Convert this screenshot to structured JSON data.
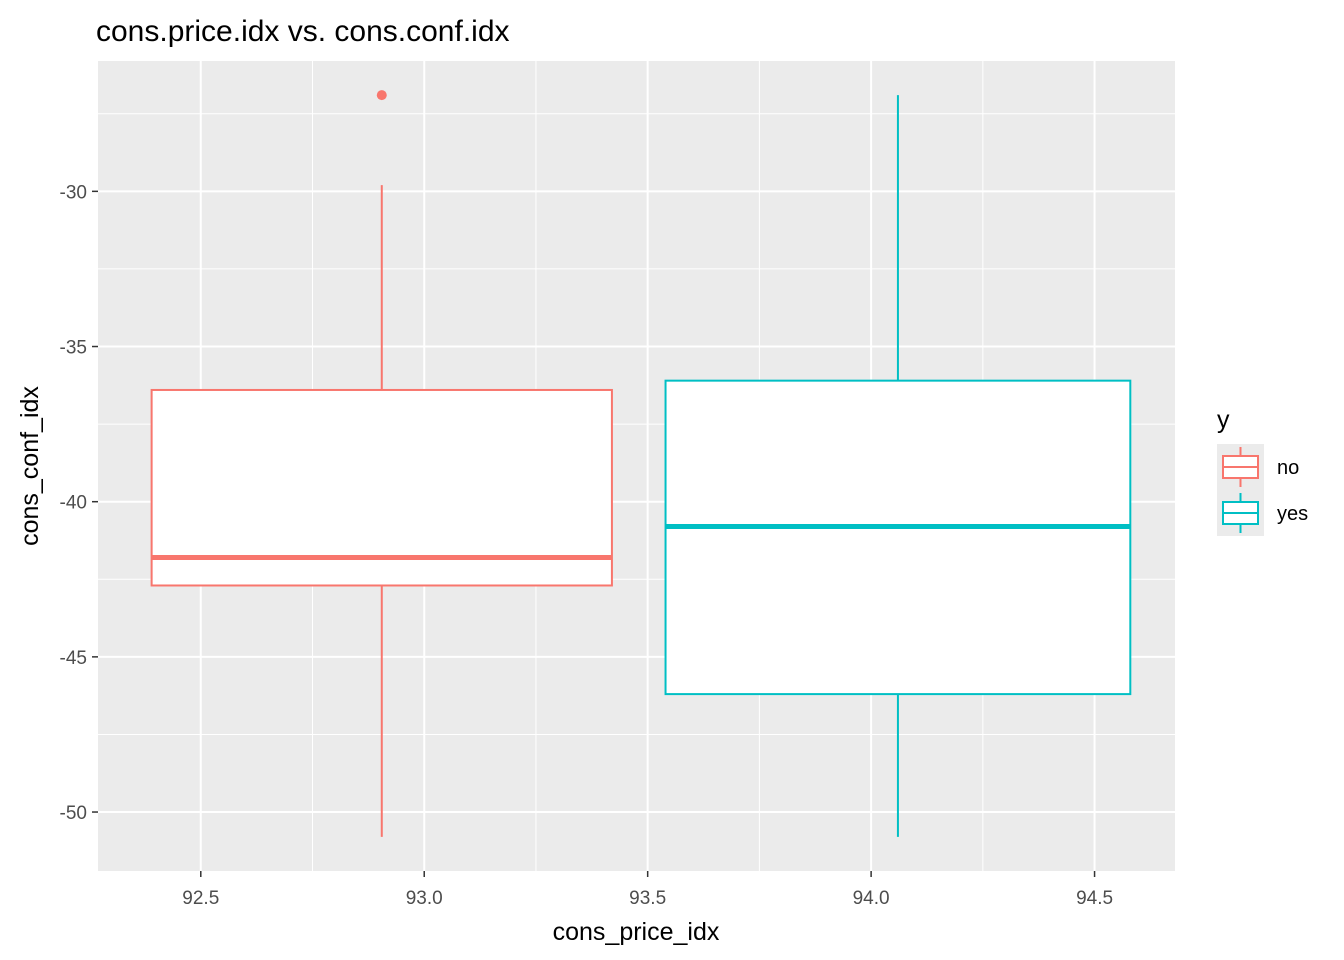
{
  "chart_data": {
    "type": "boxplot",
    "title": "cons.price.idx vs. cons.conf.idx",
    "xlabel": "cons_price_idx",
    "ylabel": "cons_conf_idx",
    "xlim": [
      92.27,
      94.68
    ],
    "ylim": [
      -51.9,
      -25.8
    ],
    "xticks": [
      92.5,
      93.0,
      93.5,
      94.0,
      94.5
    ],
    "xtick_labels": [
      "92.5",
      "93.0",
      "93.5",
      "94.0",
      "94.5"
    ],
    "yticks": [
      -30,
      -35,
      -40,
      -45,
      -50
    ],
    "ytick_labels": [
      "-30",
      "-35",
      "-40",
      "-45",
      "-50"
    ],
    "grid": true,
    "legend": {
      "title": "y",
      "position": "right",
      "entries": [
        {
          "label": "no",
          "color": "#F8766D"
        },
        {
          "label": "yes",
          "color": "#00BFC4"
        }
      ]
    },
    "series": [
      {
        "name": "no",
        "color": "#F8766D",
        "x_left": 92.39,
        "x_right": 93.42,
        "x_center": 92.905,
        "whisker_low": -50.8,
        "q1": -42.7,
        "median": -41.8,
        "q3": -36.4,
        "whisker_high": -29.8,
        "outliers": [
          -26.9
        ]
      },
      {
        "name": "yes",
        "color": "#00BFC4",
        "x_left": 93.54,
        "x_right": 94.58,
        "x_center": 94.06,
        "whisker_low": -50.8,
        "q1": -46.2,
        "median": -40.8,
        "q3": -36.1,
        "whisker_high": -26.9,
        "outliers": []
      }
    ]
  }
}
